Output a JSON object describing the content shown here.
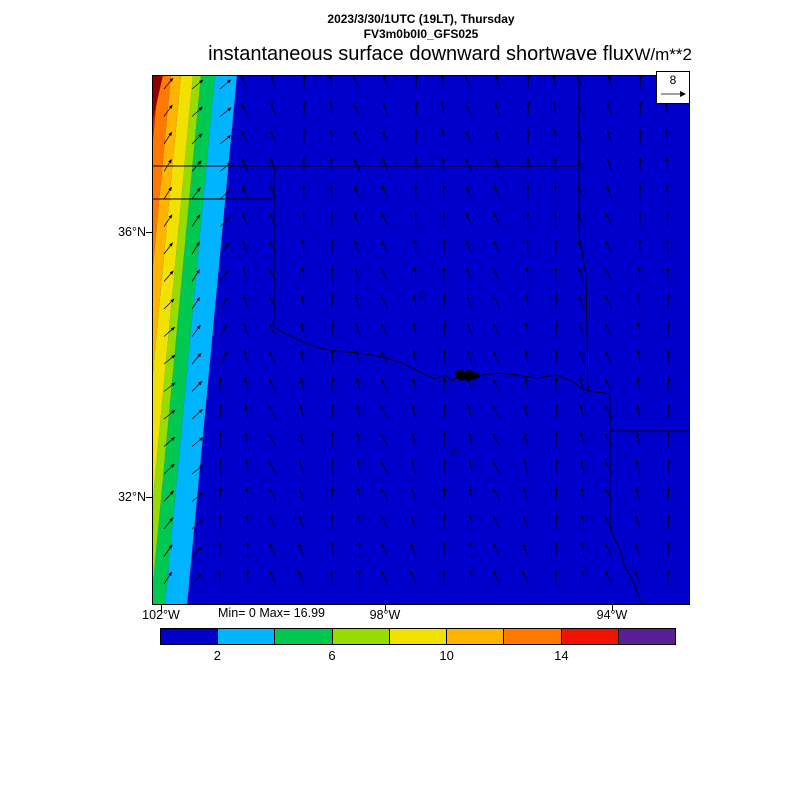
{
  "header": {
    "line1": "2023/3/30/1UTC (19LT), Thursday",
    "line2": "FV3m0b0I0_GFS025"
  },
  "title": "instantaneous surface downward shortwave flux",
  "units_label": "W/m**2",
  "stats_label": "Min= 0 Max= 16.99",
  "reference_vector": {
    "label": "8"
  },
  "axes": {
    "y_ticks": [
      {
        "label": "36°N"
      },
      {
        "label": "32°N"
      }
    ],
    "x_ticks": [
      {
        "label": "102°W"
      },
      {
        "label": "98°W"
      },
      {
        "label": "94°W"
      }
    ]
  },
  "colorbar": {
    "ticks": [
      {
        "label": "2",
        "value": 2
      },
      {
        "label": "6",
        "value": 6
      },
      {
        "label": "10",
        "value": 10
      },
      {
        "label": "14",
        "value": 14
      }
    ],
    "colors": [
      "#0000cd",
      "#00b4ff",
      "#00c850",
      "#96dc00",
      "#f0e100",
      "#ffb400",
      "#ff7800",
      "#f01400",
      "#5a1e96"
    ],
    "range": [
      0,
      18
    ]
  },
  "map_colors": {
    "background_blue": "#0000cd",
    "boundary": "#000000"
  },
  "chart_data": {
    "type": "heatmap",
    "title": "instantaneous surface downward shortwave flux",
    "units": "W/m**2",
    "valid_time": "2023/3/30/1UTC (19LT), Thursday",
    "model_run": "FV3m0b0I0_GFS025",
    "field_min": 0,
    "field_max": 16.99,
    "lat_tick_labels": [
      "36°N",
      "32°N"
    ],
    "lon_tick_labels": [
      "102°W",
      "98°W",
      "94°W"
    ],
    "colorbar_levels": [
      0,
      2,
      4,
      6,
      8,
      10,
      12,
      14,
      16,
      18
    ],
    "colorbar_tick_values": [
      2,
      6,
      10,
      14
    ],
    "colorbar_colors": [
      "#0000cd",
      "#00b4ff",
      "#00c850",
      "#96dc00",
      "#f0e100",
      "#ffb400",
      "#ff7800",
      "#f01400",
      "#5a1e96"
    ],
    "wind_reference_vector": 8,
    "field_pattern": "Shortwave flux is ~0 W/m**2 (deep blue) over nearly the entire Texas-Oklahoma domain (nighttime at 19LT); a narrow slanted rainbow band along the far western edge (values rising westward from ~2 toward the max ~17 W/m**2) marks the sunset terminator.",
    "overlays": [
      "surface wind vector arrows on a regular grid (reference arrow = 8)",
      "state boundaries (Texas, Oklahoma and neighbors)",
      "Red River / Sabine River boundary meanders",
      "star markers near Oklahoma City and Dallas-Fort Worth"
    ]
  }
}
